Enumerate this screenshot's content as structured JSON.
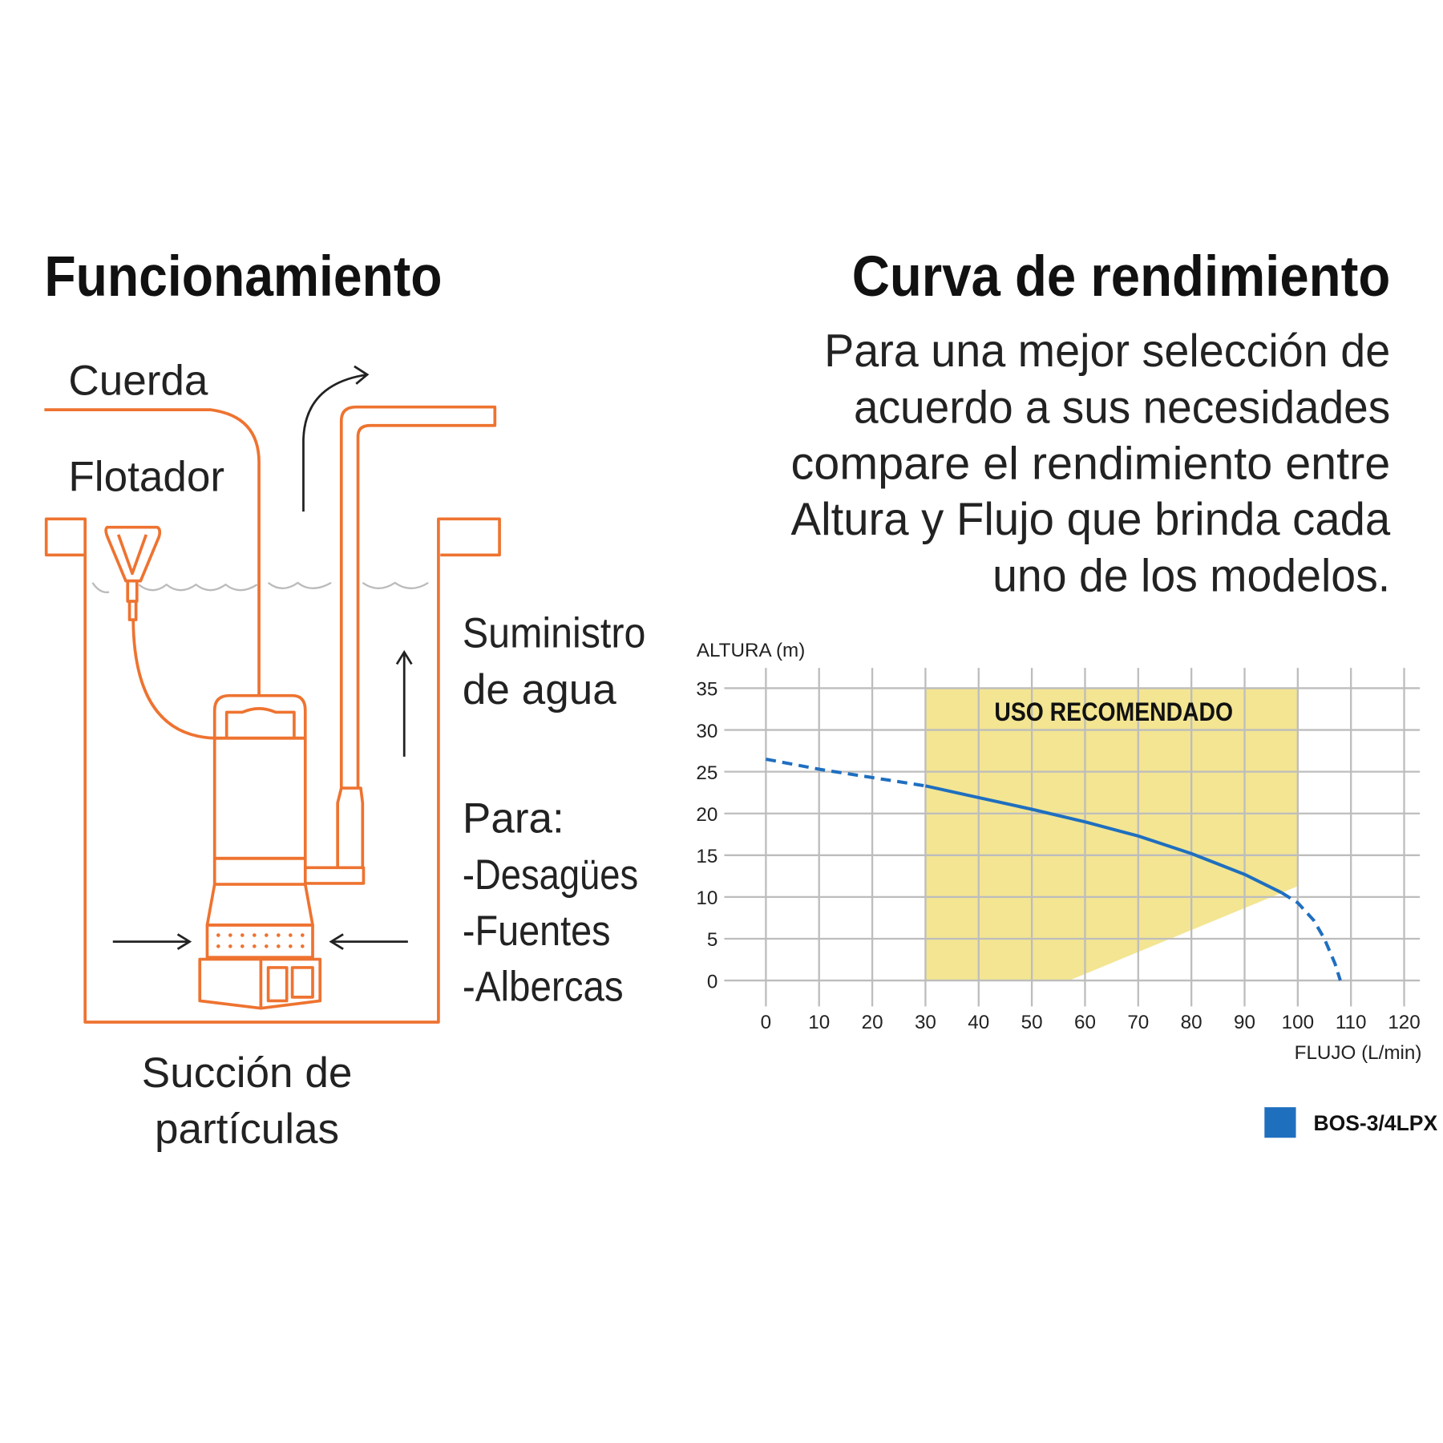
{
  "left": {
    "title": "Funcionamiento",
    "labels": {
      "cuerda": "Cuerda",
      "flotador": "Flotador",
      "suministro_1": "Suministro",
      "suministro_2": "de agua",
      "para": "Para:",
      "uses": [
        "-Desagües",
        "-Fuentes",
        "-Albercas"
      ],
      "succion_1": "Succión de",
      "succion_2": "partículas"
    },
    "colors": {
      "line": "#EE7330",
      "water": "#BBBBBB",
      "arrows": "#222222"
    }
  },
  "right": {
    "title": "Curva de rendimiento",
    "description": [
      "Para una mejor selección de",
      "acuerdo a sus necesidades",
      "compare el rendimiento entre",
      "Altura y Flujo que brinda cada",
      "uno de los modelos."
    ]
  },
  "chart_data": {
    "type": "line",
    "xlabel": "FLUJO (L/min)",
    "ylabel": "ALTURA (m)",
    "xlim": [
      0,
      120
    ],
    "ylim": [
      0,
      35
    ],
    "xticks": [
      "0",
      "10",
      "20",
      "30",
      "40",
      "50",
      "60",
      "70",
      "80",
      "90",
      "100",
      "110",
      "120"
    ],
    "yticks": [
      "0",
      "5",
      "10",
      "15",
      "20",
      "25",
      "30",
      "35"
    ],
    "grid": true,
    "legend_position": "bottom-right",
    "recommended_zone": {
      "label": "USO RECOMENDADO",
      "color": "#F3E592",
      "x_range": [
        30,
        100
      ],
      "y_range": [
        0,
        35
      ],
      "lower_boundary": [
        [
          57,
          0
        ],
        [
          100,
          11.3
        ]
      ]
    },
    "series": [
      {
        "name": "BOS-3/4LPX",
        "color": "#1F6FBF",
        "x": [
          0,
          10,
          20,
          30,
          40,
          50,
          60,
          70,
          80,
          90,
          97,
          100,
          103,
          105,
          107,
          108
        ],
        "y": [
          26.5,
          25.3,
          24.3,
          23.3,
          21.9,
          20.5,
          19.0,
          17.3,
          15.2,
          12.7,
          10.5,
          9.3,
          7.2,
          5.0,
          2.0,
          0
        ],
        "solid_range": [
          30,
          97
        ]
      }
    ]
  }
}
